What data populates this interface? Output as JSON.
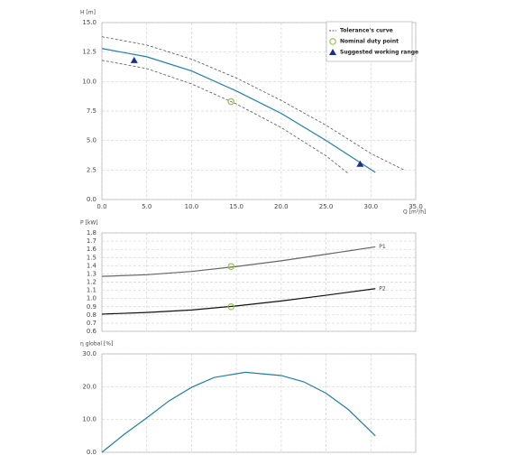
{
  "chart_data": [
    {
      "type": "line",
      "ylabel": "H [m]",
      "xlabel": "Q [m³/h]",
      "legend": "upper right",
      "grid": true,
      "xlim": [
        0,
        35
      ],
      "ylim": [
        0,
        15
      ],
      "xticks": [
        {
          "value": 0,
          "label": "0.0"
        },
        {
          "value": 5,
          "label": "5.0"
        },
        {
          "value": 10,
          "label": "10.0"
        },
        {
          "value": 15,
          "label": "15.0"
        },
        {
          "value": 20,
          "label": "20.0"
        },
        {
          "value": 25,
          "label": "25.0"
        },
        {
          "value": 30,
          "label": "30.0"
        },
        {
          "value": 35,
          "label": "35.0"
        }
      ],
      "yticks": [
        {
          "value": 0,
          "label": "0.0"
        },
        2.5,
        {
          "value": 5,
          "label": "5.0"
        },
        7.5,
        {
          "value": 10,
          "label": "10.0"
        },
        12.5,
        {
          "value": 15,
          "label": "15.0"
        }
      ],
      "series": [
        {
          "color": "#1f7fa8",
          "x": [
            0,
            5,
            10,
            15,
            20,
            25,
            30.5
          ],
          "values": [
            12.8,
            12.1,
            10.9,
            9.2,
            7.3,
            5.0,
            2.3
          ]
        },
        {
          "name": "Tolerance's curve",
          "dashed": true,
          "color": "#555555",
          "x": [
            0,
            5,
            10,
            15,
            20,
            25,
            30,
            33.7
          ],
          "values": [
            13.8,
            13.1,
            11.9,
            10.3,
            8.4,
            6.3,
            3.9,
            2.5
          ]
        },
        {
          "dashed": true,
          "color": "#555555",
          "x": [
            0,
            5,
            10,
            15,
            20,
            25,
            27.5
          ],
          "values": [
            11.8,
            11.1,
            9.8,
            8.1,
            6.1,
            3.7,
            2.2
          ]
        }
      ],
      "points": [
        {
          "name": "Nominal duty point",
          "symbol": "circle",
          "color": "#8dc63f",
          "x": [
            14.4
          ],
          "y": [
            8.3
          ]
        },
        {
          "name": "Suggested working range",
          "symbol": "triangle",
          "color": "#1a2f8f",
          "x": [
            3.6,
            28.8
          ],
          "y": [
            11.8,
            3.0
          ]
        }
      ]
    },
    {
      "type": "line",
      "ylabel": "P [kW]",
      "grid": true,
      "xlim": [
        0,
        35
      ],
      "ylim": [
        0.6,
        1.8
      ],
      "yticks": [
        0.6,
        0.7,
        0.8,
        0.9,
        {
          "value": 1.0,
          "label": "1.0"
        },
        1.1,
        1.2,
        1.3,
        1.4,
        1.5,
        1.6,
        1.7,
        1.8
      ],
      "series": [
        {
          "name": "P1",
          "color": "#666666",
          "x": [
            0,
            5,
            10,
            15,
            20,
            25,
            30.5
          ],
          "values": [
            1.27,
            1.29,
            1.33,
            1.39,
            1.46,
            1.54,
            1.63
          ]
        },
        {
          "name": "P2",
          "color": "#111111",
          "x": [
            0,
            5,
            10,
            15,
            20,
            25,
            30.5
          ],
          "values": [
            0.81,
            0.83,
            0.86,
            0.91,
            0.97,
            1.04,
            1.12
          ]
        }
      ],
      "points": [
        {
          "symbol": "circle",
          "color": "#8dc63f",
          "x": [
            14.4,
            14.4
          ],
          "y": [
            1.39,
            0.9
          ]
        }
      ]
    },
    {
      "type": "line",
      "ylabel": "η global [%]",
      "grid": true,
      "xlim": [
        0,
        35
      ],
      "ylim": [
        0,
        30
      ],
      "yticks": [
        {
          "value": 0,
          "label": "0.0"
        },
        {
          "value": 10,
          "label": "10.0"
        },
        {
          "value": 20,
          "label": "20.0"
        },
        {
          "value": 30,
          "label": "30.0"
        }
      ],
      "series": [
        {
          "color": "#1f7fa8",
          "x": [
            0,
            2.5,
            5,
            7.5,
            10,
            12.5,
            16,
            20,
            22.5,
            25,
            27.5,
            30.5
          ],
          "values": [
            0,
            5.5,
            10.5,
            15.7,
            19.8,
            22.8,
            24.4,
            23.4,
            21.5,
            18,
            13,
            5
          ]
        }
      ]
    }
  ]
}
